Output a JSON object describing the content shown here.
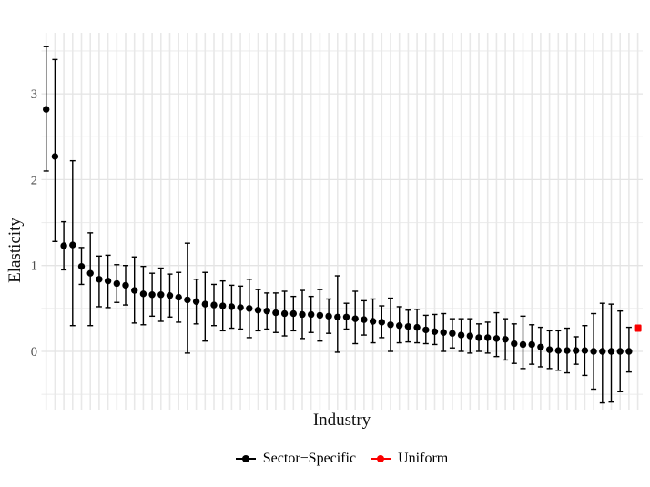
{
  "chart_data": {
    "type": "pointrange",
    "title": "",
    "xlabel": "Industry",
    "ylabel": "Elasticity",
    "x_axis": {
      "label": "Industry",
      "tick_labels_shown": false,
      "n_categories": 68
    },
    "yticks": [
      "0",
      "1",
      "2",
      "3"
    ],
    "ytick_values": [
      0,
      1,
      2,
      3
    ],
    "ylim": [
      -0.68,
      3.71
    ],
    "grid": {
      "vertical_per_category": true,
      "h_major_step": 1,
      "h_minor_step": 0.5,
      "background": "#ffffff"
    },
    "colors": {
      "sector_specific": "#000000",
      "uniform": "#fa0000",
      "grid_major": "#e4e4e4",
      "grid_minor": "#ededed",
      "grid_vertical": "#e8e8e8",
      "tick_label": "#4d4d4d"
    },
    "legend": {
      "position": "bottom-center",
      "items": [
        {
          "label": "Sector−Specific",
          "color": "#000000",
          "marker": "circle-line"
        },
        {
          "label": "Uniform",
          "color": "#fa0000",
          "marker": "circle-line"
        }
      ]
    },
    "series": [
      {
        "name": "Sector−Specific",
        "color": "#000000",
        "marker": "circle",
        "note": "points are [category_index, estimate, ci_low, ci_high]; industries sorted by descending elasticity, x tick labels not shown",
        "points": [
          [
            1,
            2.82,
            2.1,
            3.55
          ],
          [
            2,
            2.27,
            1.28,
            3.4
          ],
          [
            3,
            1.23,
            0.95,
            1.51
          ],
          [
            4,
            1.24,
            0.3,
            2.22
          ],
          [
            5,
            0.99,
            0.78,
            1.21
          ],
          [
            6,
            0.91,
            0.3,
            1.38
          ],
          [
            7,
            0.84,
            0.52,
            1.11
          ],
          [
            8,
            0.82,
            0.51,
            1.12
          ],
          [
            9,
            0.79,
            0.57,
            1.01
          ],
          [
            10,
            0.77,
            0.54,
            1.0
          ],
          [
            11,
            0.71,
            0.33,
            1.1
          ],
          [
            12,
            0.67,
            0.31,
            0.99
          ],
          [
            13,
            0.66,
            0.41,
            0.91
          ],
          [
            14,
            0.66,
            0.35,
            0.97
          ],
          [
            15,
            0.65,
            0.4,
            0.9
          ],
          [
            16,
            0.63,
            0.34,
            0.92
          ],
          [
            17,
            0.6,
            -0.02,
            1.26
          ],
          [
            18,
            0.58,
            0.32,
            0.84
          ],
          [
            19,
            0.55,
            0.12,
            0.92
          ],
          [
            20,
            0.54,
            0.3,
            0.78
          ],
          [
            21,
            0.53,
            0.24,
            0.82
          ],
          [
            22,
            0.52,
            0.27,
            0.77
          ],
          [
            23,
            0.51,
            0.26,
            0.76
          ],
          [
            24,
            0.5,
            0.16,
            0.84
          ],
          [
            25,
            0.48,
            0.24,
            0.72
          ],
          [
            26,
            0.47,
            0.26,
            0.68
          ],
          [
            27,
            0.45,
            0.22,
            0.68
          ],
          [
            28,
            0.44,
            0.18,
            0.7
          ],
          [
            29,
            0.44,
            0.24,
            0.64
          ],
          [
            30,
            0.43,
            0.15,
            0.71
          ],
          [
            31,
            0.43,
            0.22,
            0.64
          ],
          [
            32,
            0.42,
            0.12,
            0.72
          ],
          [
            33,
            0.41,
            0.21,
            0.61
          ],
          [
            34,
            0.4,
            -0.01,
            0.88
          ],
          [
            35,
            0.4,
            0.26,
            0.56
          ],
          [
            36,
            0.38,
            0.09,
            0.7
          ],
          [
            37,
            0.37,
            0.19,
            0.59
          ],
          [
            38,
            0.35,
            0.1,
            0.61
          ],
          [
            39,
            0.34,
            0.16,
            0.53
          ],
          [
            40,
            0.31,
            0.0,
            0.62
          ],
          [
            41,
            0.3,
            0.1,
            0.52
          ],
          [
            42,
            0.29,
            0.11,
            0.48
          ],
          [
            43,
            0.28,
            0.1,
            0.49
          ],
          [
            44,
            0.25,
            0.09,
            0.42
          ],
          [
            45,
            0.23,
            0.08,
            0.43
          ],
          [
            46,
            0.22,
            0.0,
            0.44
          ],
          [
            47,
            0.21,
            0.04,
            0.38
          ],
          [
            48,
            0.19,
            0.0,
            0.38
          ],
          [
            49,
            0.18,
            -0.02,
            0.38
          ],
          [
            50,
            0.16,
            0.0,
            0.32
          ],
          [
            51,
            0.16,
            -0.02,
            0.34
          ],
          [
            52,
            0.15,
            -0.06,
            0.45
          ],
          [
            53,
            0.14,
            -0.1,
            0.38
          ],
          [
            54,
            0.09,
            -0.14,
            0.32
          ],
          [
            55,
            0.08,
            -0.2,
            0.41
          ],
          [
            56,
            0.08,
            -0.15,
            0.31
          ],
          [
            57,
            0.05,
            -0.18,
            0.28
          ],
          [
            58,
            0.02,
            -0.2,
            0.24
          ],
          [
            59,
            0.01,
            -0.22,
            0.24
          ],
          [
            60,
            0.01,
            -0.25,
            0.27
          ],
          [
            61,
            0.01,
            -0.15,
            0.17
          ],
          [
            62,
            0.01,
            -0.28,
            0.3
          ],
          [
            63,
            0.0,
            -0.44,
            0.44
          ],
          [
            64,
            0.0,
            -0.6,
            0.56
          ],
          [
            65,
            0.0,
            -0.59,
            0.55
          ],
          [
            66,
            0.0,
            -0.47,
            0.47
          ],
          [
            67,
            0.0,
            -0.24,
            0.28
          ]
        ]
      },
      {
        "name": "Uniform",
        "color": "#fa0000",
        "marker": "square",
        "points": [
          [
            68,
            0.27,
            null,
            null
          ]
        ]
      }
    ]
  }
}
